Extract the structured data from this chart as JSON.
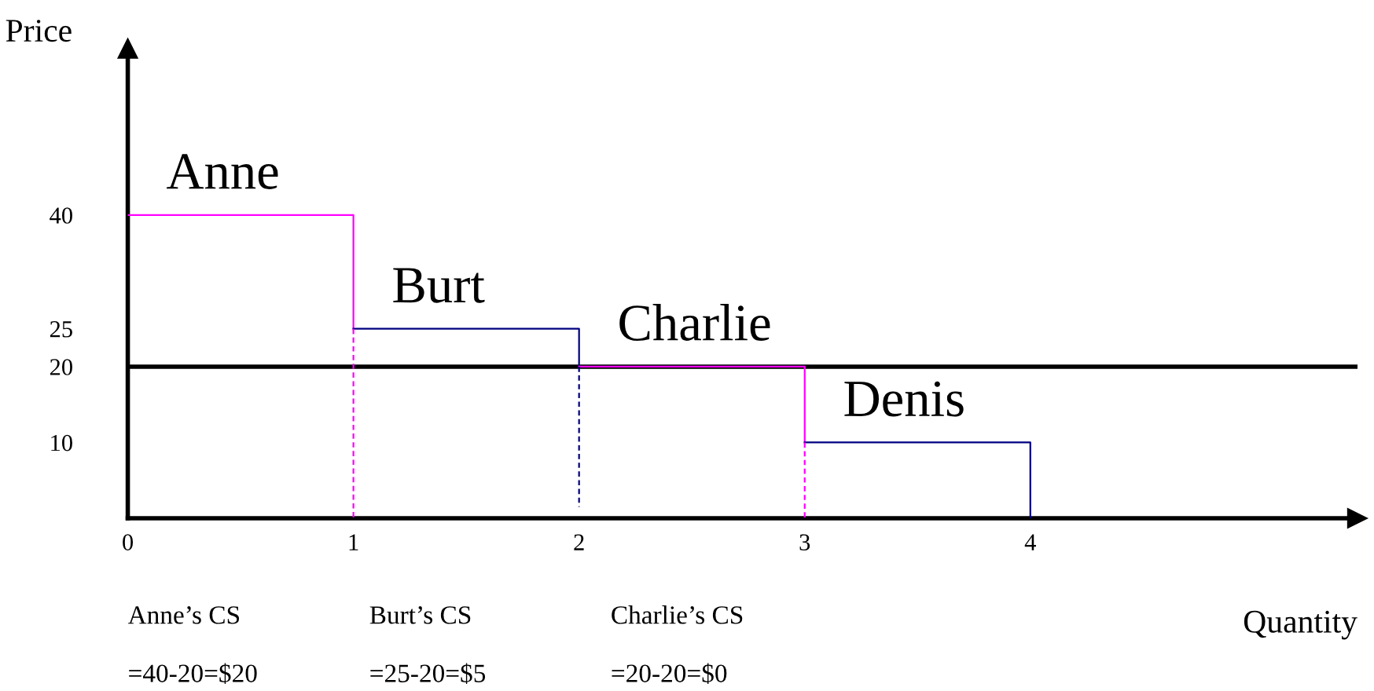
{
  "chart_data": {
    "type": "line",
    "xlabel": "Quantity",
    "ylabel": "Price",
    "xlim": [
      0,
      5.45
    ],
    "ylim": [
      0,
      62
    ],
    "xticks": [
      0,
      1,
      2,
      3,
      4
    ],
    "yticks": [
      10,
      20,
      25,
      40
    ],
    "grid": false,
    "legend": false,
    "series": [
      {
        "name": "Anne",
        "color": "#ff00ff",
        "x": [
          0,
          1,
          1
        ],
        "values": [
          40,
          40,
          25
        ]
      },
      {
        "name": "Burt",
        "color": "#000080",
        "x": [
          1,
          2,
          2
        ],
        "values": [
          25,
          25,
          20
        ]
      },
      {
        "name": "Charlie",
        "color": "#ff00ff",
        "x": [
          2,
          3,
          3
        ],
        "values": [
          20,
          20,
          10
        ]
      },
      {
        "name": "Denis",
        "color": "#000080",
        "x": [
          3,
          4,
          4
        ],
        "values": [
          10,
          10,
          0
        ]
      },
      {
        "line_style": "dashed",
        "color": "#ff00ff",
        "x": [
          1,
          1
        ],
        "values": [
          25,
          0
        ]
      },
      {
        "line_style": "dashed",
        "color": "#000080",
        "x": [
          2,
          2
        ],
        "values": [
          20,
          1.5
        ]
      },
      {
        "line_style": "dashed",
        "color": "#ff00ff",
        "x": [
          3,
          3
        ],
        "values": [
          10,
          0
        ]
      }
    ],
    "ref_lines": [
      {
        "axis": "y",
        "value": 20,
        "color": "#000000"
      }
    ],
    "annotations": [
      "Anne’s CS\n\n=40-20=$20",
      "Burt’s CS\n\n=25-20=$5",
      "Charlie’s CS\n\n=20-20=$0"
    ]
  }
}
